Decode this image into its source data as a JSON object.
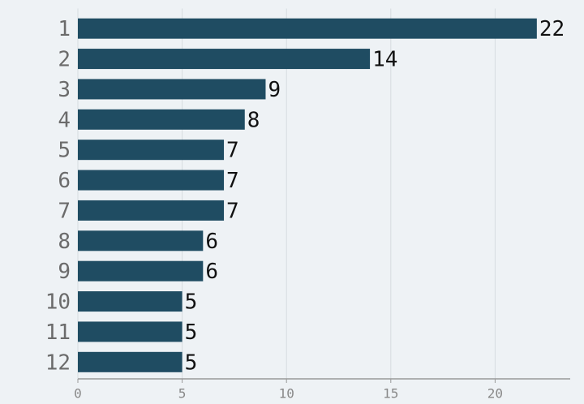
{
  "chart_data": {
    "type": "bar",
    "orientation": "horizontal",
    "categories": [
      "1",
      "2",
      "3",
      "4",
      "5",
      "6",
      "7",
      "8",
      "9",
      "10",
      "11",
      "12"
    ],
    "values": [
      22,
      14,
      9,
      8,
      7,
      7,
      7,
      6,
      6,
      5,
      5,
      5
    ],
    "color": "#1f4c62",
    "xlim": [
      0,
      23.6
    ],
    "xticks": [
      0,
      5,
      10,
      15,
      20
    ],
    "grid": true
  }
}
